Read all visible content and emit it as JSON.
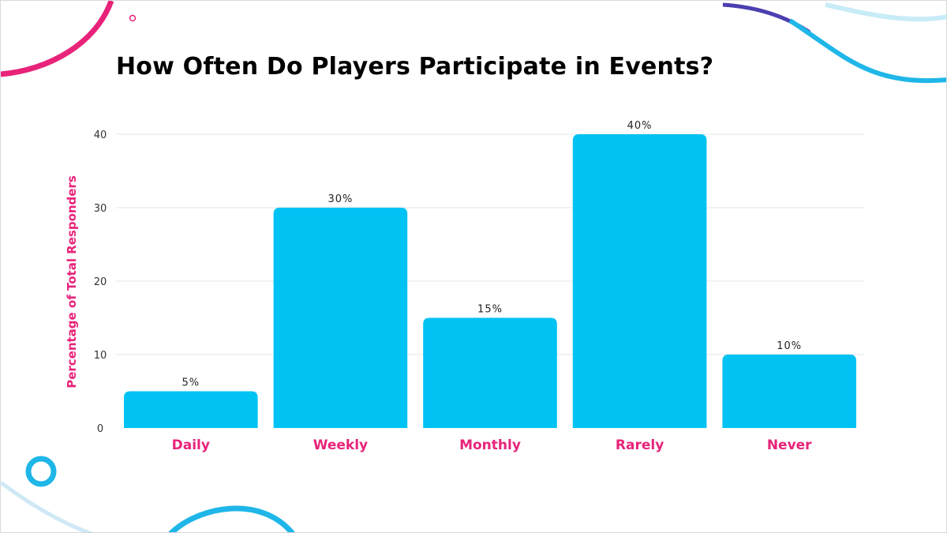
{
  "slide": {
    "title": "How Often Do Players Participate in Events?"
  },
  "colors": {
    "bar": "#00c2f3",
    "accent_pink": "#e8237a",
    "grid": "#e6e6e6",
    "deco_blue": "#1fb6e8",
    "deco_navy": "#4b3fb0"
  },
  "chart_data": {
    "type": "bar",
    "title": "How Often Do Players Participate in Events?",
    "xlabel": "",
    "ylabel": "Percentage of Total Responders",
    "categories": [
      "Daily",
      "Weekly",
      "Monthly",
      "Rarely",
      "Never"
    ],
    "values": [
      5,
      30,
      15,
      40,
      10
    ],
    "value_labels": [
      "5%",
      "30%",
      "15%",
      "40%",
      "10%"
    ],
    "y_ticks": [
      0,
      10,
      20,
      30,
      40
    ],
    "ylim": [
      0,
      40
    ],
    "grid": true,
    "legend": "none"
  }
}
